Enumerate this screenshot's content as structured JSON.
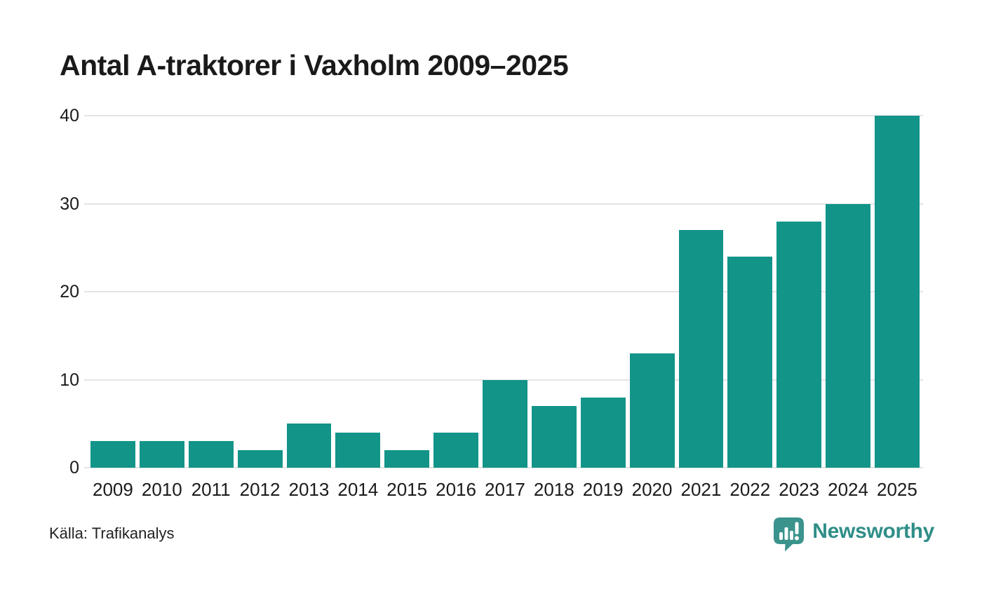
{
  "title": "Antal A-traktorer i Vaxholm 2009–2025",
  "footer": {
    "source": "Källa: Trafikanalys",
    "brand": "Newsworthy",
    "logo_icon": "newsworthy-speech-bubble-bar-chart-icon"
  },
  "colors": {
    "background": "#ffffff",
    "bar": "#129488",
    "gridline": "#e4e4e6",
    "title_text": "#1a1a1a",
    "axis_text": "#1b1b1b",
    "source_text": "#222222",
    "brand_teal": "#2f8e87",
    "logo_bubble": "#3a938c"
  },
  "chart_data": {
    "type": "bar",
    "title": "Antal A-traktorer i Vaxholm 2009–2025",
    "categories": [
      "2009",
      "2010",
      "2011",
      "2012",
      "2013",
      "2014",
      "2015",
      "2016",
      "2017",
      "2018",
      "2019",
      "2020",
      "2021",
      "2022",
      "2023",
      "2024",
      "2025"
    ],
    "values": [
      3,
      3,
      3,
      2,
      5,
      4,
      2,
      4,
      10,
      7,
      8,
      13,
      27,
      24,
      28,
      30,
      40
    ],
    "xlabel": "",
    "ylabel": "",
    "yticks": [
      0,
      10,
      20,
      30,
      40
    ],
    "ylim": [
      0,
      40
    ],
    "grid": "horizontal",
    "legend": "none",
    "bar_color": "#129488",
    "source": "Källa: Trafikanalys"
  }
}
